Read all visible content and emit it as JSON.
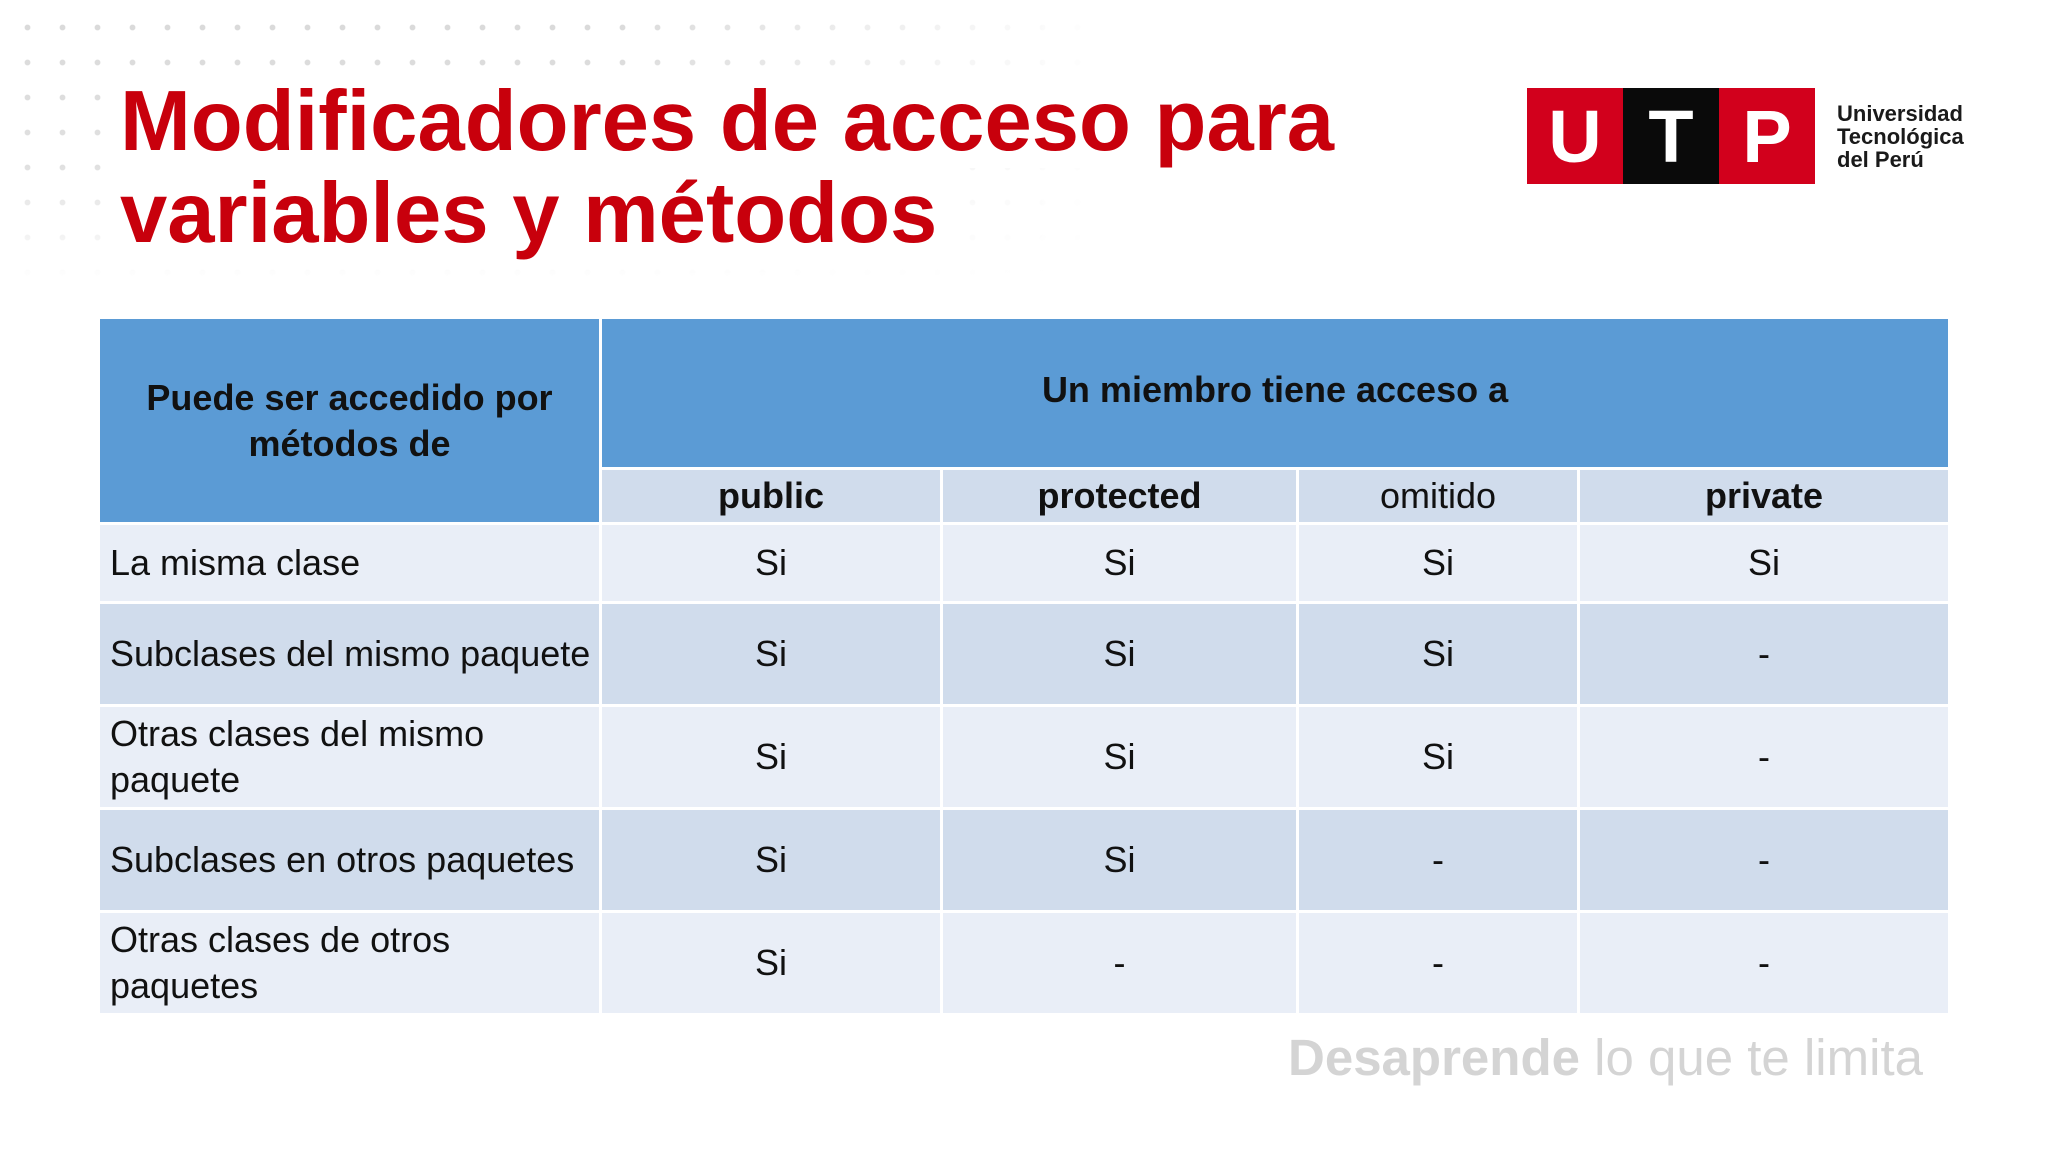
{
  "title": {
    "line1": "Modificadores de acceso para",
    "line2": "variables y métodos"
  },
  "logo": {
    "letters": [
      "U",
      "T",
      "P"
    ],
    "text_lines": [
      "Universidad",
      "Tecnológica",
      "del Perú"
    ],
    "colors": {
      "red": "#d2001c",
      "black": "#0a0a0a"
    }
  },
  "table": {
    "corner_header": "Puede ser accedido por métodos de",
    "group_header": "Un miembro tiene acceso a",
    "columns": [
      "public",
      "protected",
      "omitido",
      "private"
    ],
    "rows": [
      {
        "label": "La misma clase",
        "values": [
          "Si",
          "Si",
          "Si",
          "Si"
        ]
      },
      {
        "label": "Subclases del mismo paquete",
        "values": [
          "Si",
          "Si",
          "Si",
          "-"
        ]
      },
      {
        "label": "Otras clases del mismo paquete",
        "values": [
          "Si",
          "Si",
          "Si",
          "-"
        ]
      },
      {
        "label": "Subclases en otros paquetes",
        "values": [
          "Si",
          "Si",
          "-",
          "-"
        ]
      },
      {
        "label": "Otras clases de otros paquetes",
        "values": [
          "Si",
          "-",
          "-",
          "-"
        ]
      }
    ]
  },
  "tagline": {
    "bold": "Desaprende",
    "rest": " lo que te limita"
  },
  "colors": {
    "title": "#c8000c",
    "header_blue": "#5b9bd5",
    "row_dark": "#d0dcec",
    "row_light": "#e9eef7"
  }
}
